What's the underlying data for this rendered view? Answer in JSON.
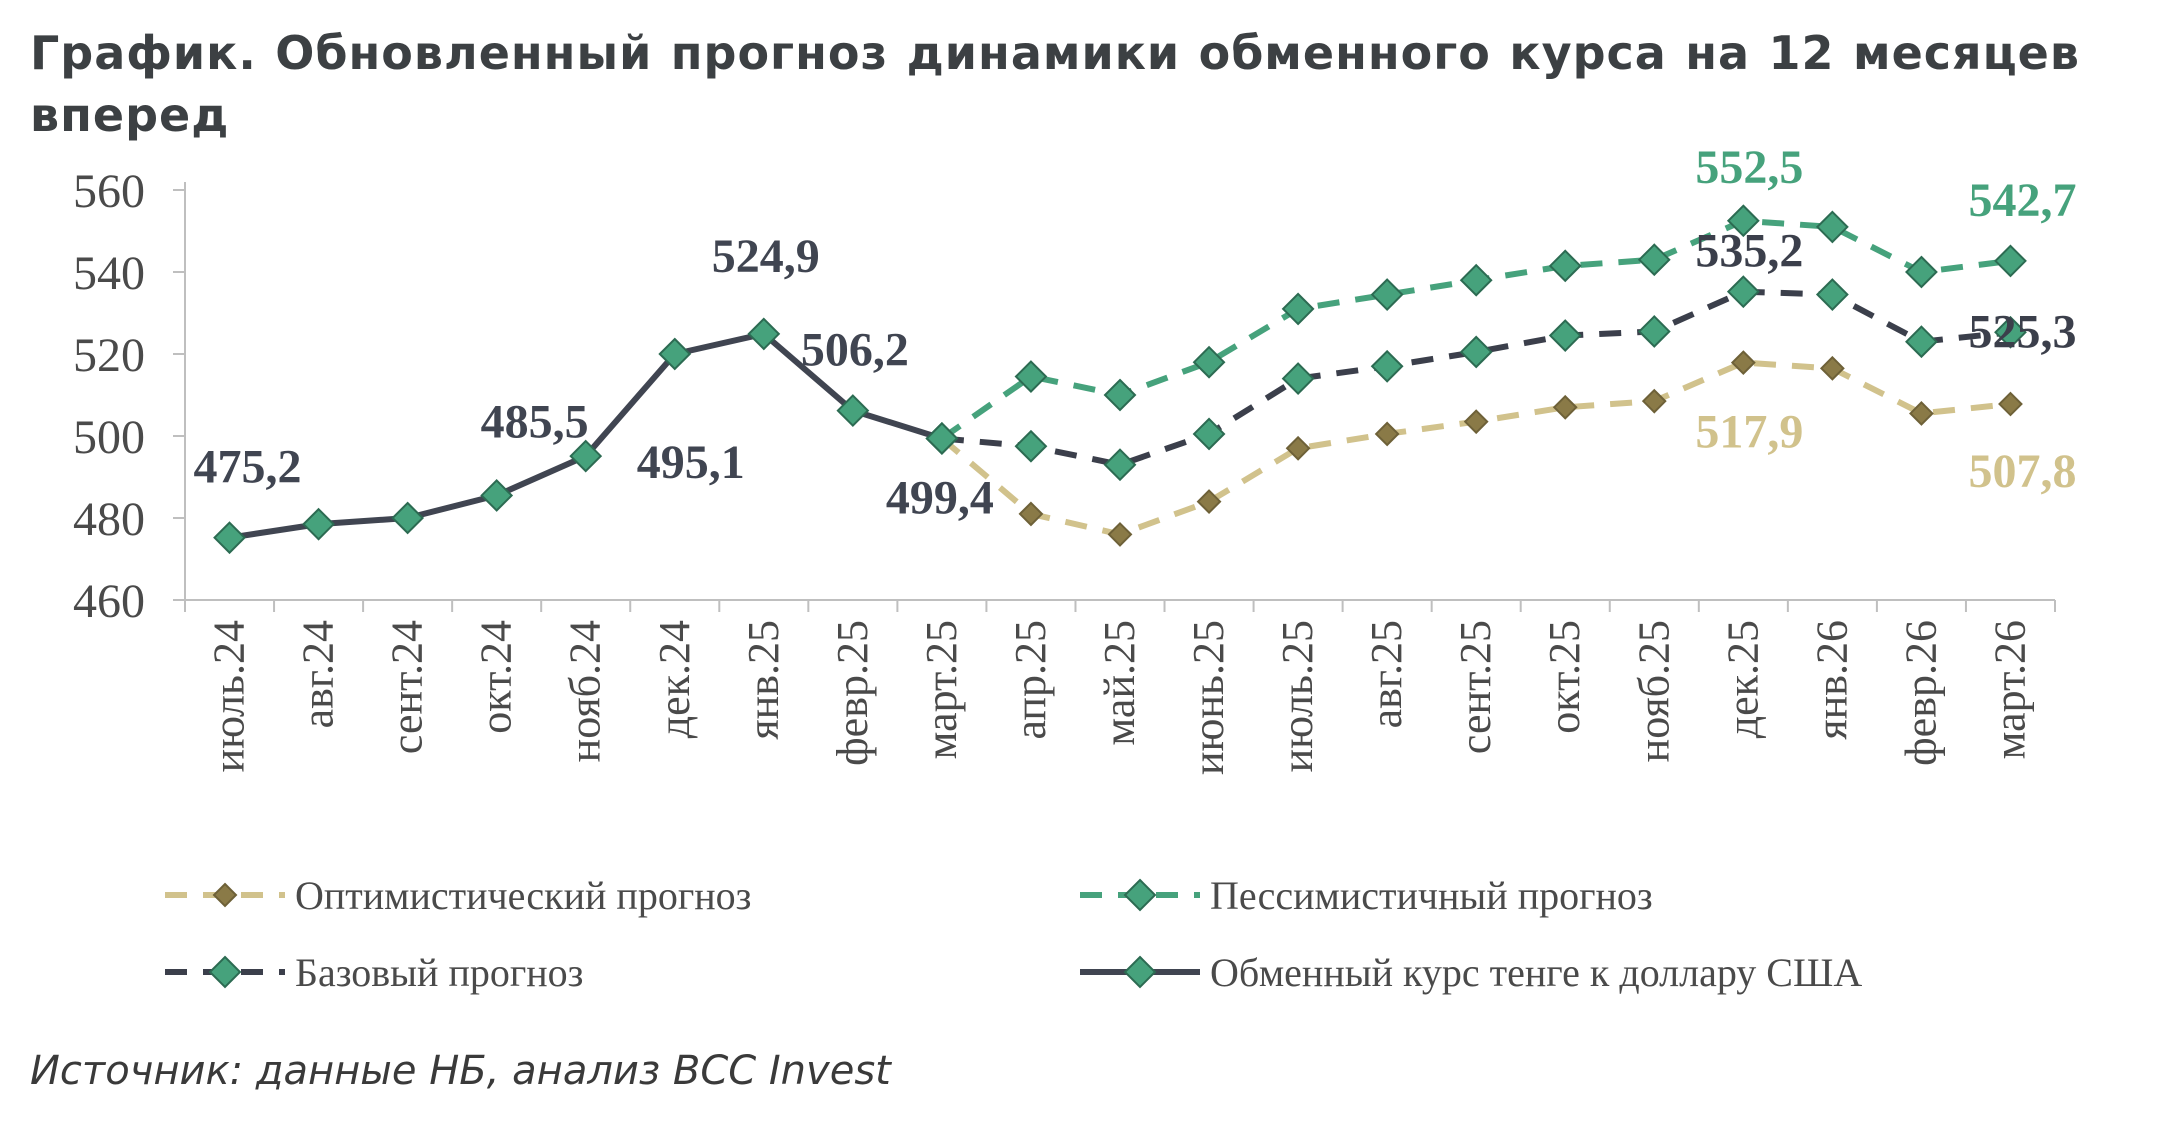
{
  "page": {
    "title": "График. Обновленный прогноз динамики обменного курса на 12 месяцев вперед",
    "source": "Источник: данные НБ, анализ BCC Invest"
  },
  "colors": {
    "actual": "#404551",
    "base_line": "#3b3f4b",
    "pessimistic": "#46a27c",
    "optimistic": "#d1c28c",
    "marker_fill": "#46a27c",
    "marker_stroke": "#2c6b52",
    "optimistic_marker": "#8a7a47",
    "axis": "#bfbfbf"
  },
  "chart_data": {
    "type": "line",
    "categories": [
      "июль.24",
      "авг.24",
      "сент.24",
      "окт.24",
      "нояб.24",
      "дек.24",
      "янв.25",
      "февр.25",
      "март.25",
      "апр.25",
      "май.25",
      "июнь.25",
      "июль.25",
      "авг.25",
      "сент.25",
      "окт.25",
      "нояб.25",
      "дек.25",
      "янв.26",
      "февр.26",
      "март.26"
    ],
    "ylim": [
      460,
      560
    ],
    "yticks": [
      460,
      480,
      500,
      520,
      540,
      560
    ],
    "series": [
      {
        "name": "Оптимистический прогноз",
        "key": "optimistic",
        "style": "dashed",
        "values": [
          null,
          null,
          null,
          null,
          null,
          null,
          null,
          null,
          499.4,
          481,
          476,
          484,
          497,
          500.5,
          503.5,
          507,
          508.5,
          517.9,
          516.5,
          505.5,
          507.8
        ]
      },
      {
        "name": "Пессимистичный прогноз",
        "key": "pessimistic",
        "style": "dashed",
        "values": [
          null,
          null,
          null,
          null,
          null,
          null,
          null,
          null,
          499.4,
          514.5,
          510,
          518,
          531,
          534.5,
          538,
          541.5,
          543,
          552.5,
          551,
          540,
          542.7
        ]
      },
      {
        "name": "Базовый прогноз",
        "key": "base",
        "style": "dashed",
        "values": [
          null,
          null,
          null,
          null,
          null,
          null,
          null,
          null,
          499.4,
          497.5,
          493,
          500.5,
          514,
          517,
          520.5,
          524.5,
          525.5,
          535.2,
          534.5,
          523,
          525.3
        ]
      },
      {
        "name": "Обменный курс тенге к доллару США",
        "key": "actual",
        "style": "solid",
        "values": [
          475.2,
          478.5,
          480,
          485.5,
          495.1,
          520,
          524.9,
          506.2,
          499.4,
          null,
          null,
          null,
          null,
          null,
          null,
          null,
          null,
          null,
          null,
          null,
          null
        ]
      }
    ],
    "data_labels": [
      {
        "series": "actual",
        "index": 0,
        "text": "475,2"
      },
      {
        "series": "actual",
        "index": 3,
        "text": "485,5"
      },
      {
        "series": "actual",
        "index": 4,
        "text": "495,1"
      },
      {
        "series": "actual",
        "index": 6,
        "text": "524,9"
      },
      {
        "series": "actual",
        "index": 7,
        "text": "506,2"
      },
      {
        "series": "actual",
        "index": 8,
        "text": "499,4"
      },
      {
        "series": "pessimistic",
        "index": 17,
        "text": "552,5"
      },
      {
        "series": "pessimistic",
        "index": 20,
        "text": "542,7"
      },
      {
        "series": "base",
        "index": 17,
        "text": "535,2"
      },
      {
        "series": "base",
        "index": 20,
        "text": "525,3"
      },
      {
        "series": "optimistic",
        "index": 17,
        "text": "517,9"
      },
      {
        "series": "optimistic",
        "index": 20,
        "text": "507,8"
      }
    ],
    "legend": {
      "placement": "bottom",
      "items": [
        {
          "key": "optimistic",
          "text": "Оптимистический прогноз"
        },
        {
          "key": "pessimistic",
          "text": "Пессимистичный прогноз"
        },
        {
          "key": "base",
          "text": "Базовый прогноз"
        },
        {
          "key": "actual",
          "text": "Обменный курс тенге к доллару США"
        }
      ]
    }
  }
}
